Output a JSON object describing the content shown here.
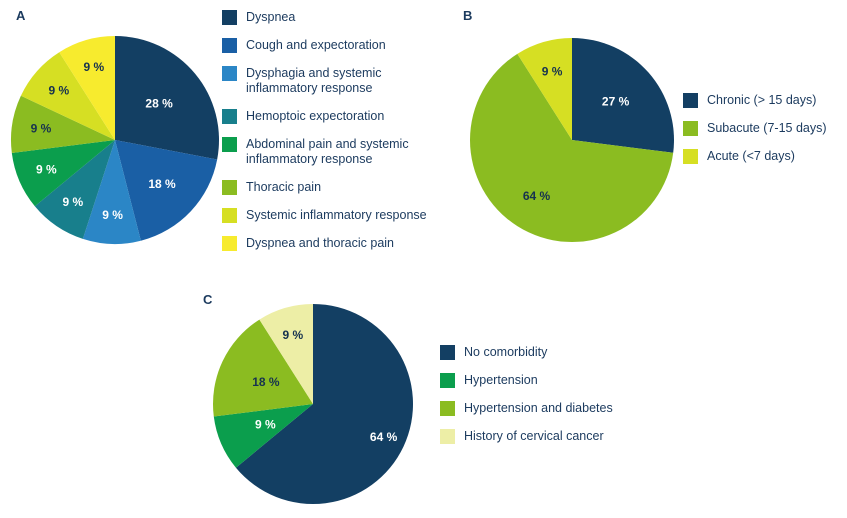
{
  "figure": {
    "background": "#ffffff",
    "text_color": "#1b3a5e"
  },
  "chart_data": [
    {
      "type": "pie",
      "panel": "A",
      "title": "",
      "labels": [
        "Dyspnea",
        "Cough and expectoration",
        "Dysphagia and systemic inflammatory response",
        "Hemoptoic expectoration",
        "Abdominal pain and systemic inflammatory response",
        "Thoracic pain",
        "Systemic inflammatory response",
        "Dyspnea and thoracic pain"
      ],
      "values": [
        28,
        18,
        9,
        9,
        9,
        9,
        9,
        9
      ],
      "unit": "%",
      "value_label_format": "{value} %",
      "colors": [
        "#133f63",
        "#1a5fa5",
        "#2b86c6",
        "#187f8c",
        "#0b9e4d",
        "#8bbc21",
        "#d6df23",
        "#f7eb2e"
      ],
      "value_label_colors": [
        "#ffffff",
        "#ffffff",
        "#ffffff",
        "#ffffff",
        "#ffffff",
        "#16324f",
        "#16324f",
        "#16324f"
      ],
      "label_radius": [
        0.55,
        0.62,
        0.72,
        0.72,
        0.72,
        0.72,
        0.72,
        0.73
      ],
      "start_angle": "top",
      "direction": "clockwise",
      "legend_position": "right"
    },
    {
      "type": "pie",
      "panel": "B",
      "title": "",
      "labels": [
        "Chronic (> 15 days)",
        "Subacute (7-15 days)",
        "Acute (<7 days)"
      ],
      "values": [
        27,
        64,
        9
      ],
      "unit": "%",
      "value_label_format": "{value} %",
      "colors": [
        "#133f63",
        "#8bbc21",
        "#d6df23"
      ],
      "value_label_colors": [
        "#ffffff",
        "#16324f",
        "#16324f"
      ],
      "label_radius": [
        0.57,
        0.65,
        0.7
      ],
      "start_angle": "top",
      "direction": "clockwise",
      "legend_position": "right"
    },
    {
      "type": "pie",
      "panel": "C",
      "title": "",
      "labels": [
        "No comorbidity",
        "Hypertension",
        "Hypertension and diabetes",
        "History of cervical cancer"
      ],
      "values": [
        64,
        9,
        18,
        9
      ],
      "unit": "%",
      "value_label_format": "{value} %",
      "colors": [
        "#133f63",
        "#0b9e4d",
        "#8bbc21",
        "#edeea6"
      ],
      "value_label_colors": [
        "#ffffff",
        "#ffffff",
        "#16324f",
        "#16324f"
      ],
      "label_radius": [
        0.78,
        0.52,
        0.52,
        0.72
      ],
      "start_angle": "top",
      "direction": "clockwise",
      "legend_position": "right"
    }
  ]
}
